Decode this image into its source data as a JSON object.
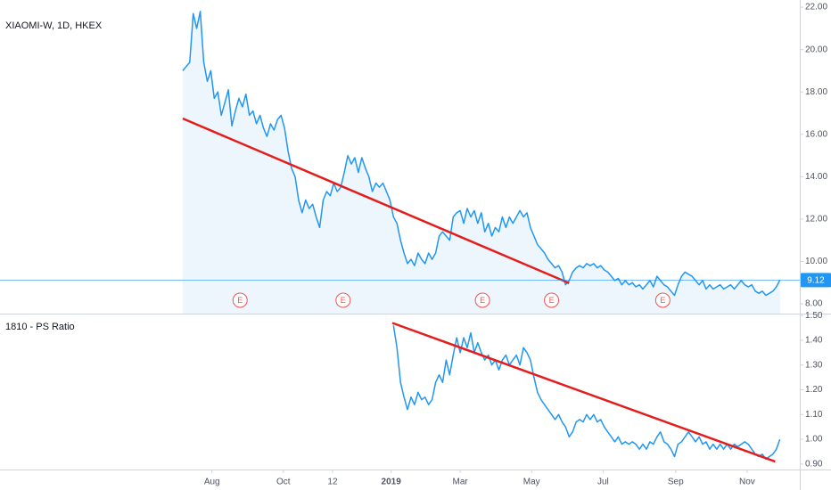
{
  "chart_data": [
    {
      "type": "area",
      "title": "XIAOMI-W, 1D, HKEX",
      "color": "#2196f3",
      "fill": "#e3f0fc",
      "xlim": [
        31,
        714
      ],
      "ylim": [
        7.54,
        22.34
      ],
      "yticks": [
        {
          "value": 8,
          "label": "8.00"
        },
        {
          "value": 10,
          "label": "10.00"
        },
        {
          "value": 12,
          "label": "12.00"
        },
        {
          "value": 14,
          "label": "14.00"
        },
        {
          "value": 16,
          "label": "16.00"
        },
        {
          "value": 18,
          "label": "18.00"
        },
        {
          "value": 20,
          "label": "20.00"
        },
        {
          "value": 22,
          "label": "22.00"
        }
      ],
      "x": [
        187,
        190,
        193,
        196,
        199,
        202,
        205,
        208,
        211,
        214,
        217,
        220,
        223,
        226,
        229,
        232,
        235,
        238,
        241,
        244,
        247,
        250,
        253,
        256,
        259,
        262,
        265,
        268,
        271,
        274,
        277,
        280,
        283,
        286,
        289,
        292,
        295,
        298,
        301,
        304,
        307,
        310,
        313,
        316,
        319,
        322,
        325,
        328,
        331,
        334,
        337,
        340,
        343,
        346,
        349,
        352,
        355,
        358,
        361,
        364,
        367,
        370,
        373,
        376,
        379,
        382,
        385,
        388,
        391,
        394,
        397,
        400,
        403,
        406,
        409,
        412,
        415,
        418,
        421,
        424,
        427,
        430,
        433,
        436,
        439,
        442,
        445,
        448,
        451,
        454,
        457,
        460,
        463,
        466,
        469,
        472,
        475,
        478,
        481,
        484,
        487,
        490,
        493,
        496,
        499,
        502,
        505,
        508,
        511,
        514,
        517,
        520,
        523,
        526,
        529,
        532,
        535,
        538,
        541,
        544,
        547,
        550,
        553,
        556,
        559,
        562,
        565,
        568,
        571,
        574,
        577,
        580,
        583,
        586,
        589,
        592,
        595,
        598,
        601,
        604,
        607,
        610,
        613,
        616,
        619,
        622,
        625,
        628,
        631,
        634,
        637,
        640,
        643,
        646,
        649,
        652,
        655,
        658,
        661,
        664,
        667,
        670,
        673,
        676,
        679,
        682,
        685,
        688,
        691,
        694,
        697
      ],
      "values": [
        19.0,
        19.2,
        19.4,
        21.7,
        21.0,
        21.8,
        19.4,
        18.5,
        19.0,
        17.7,
        18.0,
        16.9,
        17.5,
        18.1,
        16.4,
        17.1,
        17.7,
        17.3,
        17.9,
        16.9,
        17.1,
        16.5,
        16.9,
        16.3,
        15.9,
        16.5,
        16.2,
        16.7,
        16.9,
        16.3,
        15.2,
        14.4,
        14.0,
        12.9,
        12.3,
        12.9,
        12.5,
        12.7,
        12.1,
        11.6,
        12.9,
        13.3,
        13.1,
        13.7,
        13.3,
        13.5,
        14.2,
        15.0,
        14.6,
        14.9,
        14.2,
        14.9,
        14.4,
        14.0,
        13.3,
        13.7,
        13.5,
        13.7,
        13.3,
        12.9,
        12.1,
        11.8,
        11.0,
        10.4,
        9.9,
        10.1,
        9.8,
        10.4,
        10.1,
        9.9,
        10.4,
        10.1,
        10.4,
        11.2,
        11.4,
        11.2,
        11.0,
        12.1,
        12.3,
        12.4,
        11.8,
        12.5,
        12.1,
        12.4,
        11.8,
        12.3,
        11.4,
        11.8,
        11.2,
        11.6,
        11.4,
        12.1,
        11.6,
        12.1,
        11.8,
        12.1,
        12.4,
        12.1,
        12.3,
        11.6,
        11.2,
        10.8,
        10.6,
        10.4,
        10.1,
        9.9,
        9.7,
        9.8,
        9.5,
        8.9,
        9.1,
        9.5,
        9.7,
        9.8,
        9.7,
        9.9,
        9.8,
        9.9,
        9.7,
        9.8,
        9.6,
        9.5,
        9.3,
        9.1,
        9.2,
        8.9,
        9.1,
        8.9,
        9.0,
        8.8,
        8.9,
        8.7,
        8.9,
        9.1,
        8.8,
        9.3,
        9.1,
        8.9,
        8.8,
        8.6,
        8.4,
        8.9,
        9.3,
        9.5,
        9.4,
        9.3,
        9.1,
        8.9,
        9.1,
        8.7,
        8.9,
        8.7,
        8.8,
        8.9,
        8.7,
        8.8,
        8.9,
        8.7,
        8.9,
        9.1,
        8.9,
        8.8,
        8.9,
        8.6,
        8.5,
        8.6,
        8.4,
        8.5,
        8.6,
        8.8,
        9.12
      ],
      "trendline": {
        "color": "#e51c1c",
        "x": [
          187,
          517
        ],
        "values": [
          16.75,
          8.98
        ]
      },
      "events": [
        {
          "x": 236,
          "label": "E"
        },
        {
          "x": 324,
          "label": "E"
        },
        {
          "x": 443,
          "label": "E"
        },
        {
          "x": 502,
          "label": "E"
        },
        {
          "x": 597,
          "label": "E"
        }
      ]
    },
    {
      "type": "line",
      "title": "1810 - PS Ratio",
      "color": "#2196f3",
      "xlim": [
        31,
        714
      ],
      "ylim": [
        0.878,
        1.504
      ],
      "yticks": [
        {
          "value": 0.9,
          "label": "0.90"
        },
        {
          "value": 1,
          "label": "1.00"
        },
        {
          "value": 1.1,
          "label": "1.10"
        },
        {
          "value": 1.2,
          "label": "1.20"
        },
        {
          "value": 1.3,
          "label": "1.30"
        },
        {
          "value": 1.4,
          "label": "1.40"
        },
        {
          "value": 1.5,
          "label": "1.50"
        }
      ],
      "xticks": [
        {
          "value": 212,
          "label": "Aug"
        },
        {
          "value": 273,
          "label": "Oct"
        },
        {
          "value": 315,
          "label": "12"
        },
        {
          "value": 365,
          "label": "2019"
        },
        {
          "value": 424,
          "label": "Mar"
        },
        {
          "value": 485,
          "label": "May"
        },
        {
          "value": 546,
          "label": "Jul"
        },
        {
          "value": 608,
          "label": "Sep"
        },
        {
          "value": 669,
          "label": "Nov"
        }
      ],
      "x": [
        367,
        370,
        373,
        376,
        379,
        382,
        385,
        388,
        391,
        394,
        397,
        400,
        403,
        406,
        409,
        412,
        415,
        418,
        421,
        424,
        427,
        430,
        433,
        436,
        439,
        442,
        445,
        448,
        451,
        454,
        457,
        460,
        463,
        466,
        469,
        472,
        475,
        478,
        481,
        484,
        487,
        490,
        493,
        496,
        499,
        502,
        505,
        508,
        511,
        514,
        517,
        520,
        523,
        526,
        529,
        532,
        535,
        538,
        541,
        544,
        547,
        550,
        553,
        556,
        559,
        562,
        565,
        568,
        571,
        574,
        577,
        580,
        583,
        586,
        589,
        592,
        595,
        598,
        601,
        604,
        607,
        610,
        613,
        616,
        619,
        622,
        625,
        628,
        631,
        634,
        637,
        640,
        643,
        646,
        649,
        652,
        655,
        658,
        661,
        664,
        667,
        670,
        673,
        676,
        679,
        682,
        685,
        688,
        691,
        694,
        697
      ],
      "values": [
        1.46,
        1.37,
        1.23,
        1.17,
        1.12,
        1.17,
        1.14,
        1.19,
        1.16,
        1.17,
        1.14,
        1.16,
        1.23,
        1.26,
        1.23,
        1.32,
        1.26,
        1.34,
        1.41,
        1.35,
        1.41,
        1.37,
        1.43,
        1.35,
        1.39,
        1.35,
        1.32,
        1.34,
        1.3,
        1.32,
        1.28,
        1.32,
        1.34,
        1.3,
        1.32,
        1.34,
        1.3,
        1.37,
        1.35,
        1.32,
        1.25,
        1.19,
        1.16,
        1.14,
        1.12,
        1.1,
        1.08,
        1.1,
        1.07,
        1.05,
        1.01,
        1.03,
        1.07,
        1.08,
        1.07,
        1.1,
        1.08,
        1.1,
        1.07,
        1.08,
        1.05,
        1.03,
        1.01,
        0.99,
        1.01,
        0.98,
        0.99,
        0.98,
        0.99,
        0.98,
        0.96,
        0.98,
        0.96,
        0.99,
        0.98,
        1.01,
        1.03,
        0.99,
        0.98,
        0.96,
        0.93,
        0.98,
        0.99,
        1.01,
        1.03,
        1.01,
        0.99,
        1.01,
        0.98,
        0.99,
        0.96,
        0.98,
        0.96,
        0.98,
        0.96,
        0.98,
        0.96,
        0.98,
        0.97,
        0.98,
        0.99,
        0.98,
        0.96,
        0.94,
        0.93,
        0.94,
        0.92,
        0.93,
        0.94,
        0.96,
        1.0
      ],
      "trendline": {
        "color": "#e51c1c",
        "x": [
          366,
          693
        ],
        "values": [
          1.47,
          0.91
        ]
      }
    }
  ]
}
